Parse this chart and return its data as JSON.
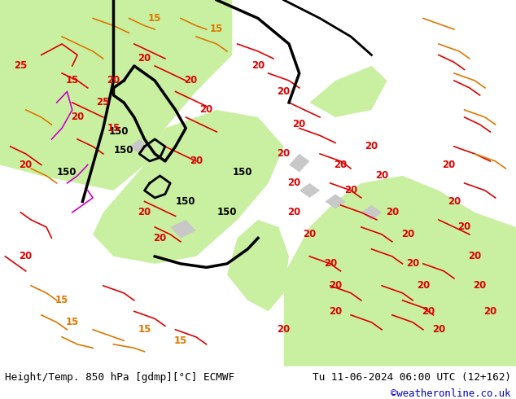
{
  "figsize": [
    6.34,
    4.9
  ],
  "dpi": 100,
  "bg_color": "#d0d0d0",
  "map_bg_color": "#e8e8e8",
  "bottom_bar_color": "#ffffff",
  "bottom_bar_height": 0.082,
  "title_left": "Height/Temp. 850 hPa [gdmp][°C] ECMWF",
  "title_right": "Tu 11-06-2024 06:00 UTC (12+162)",
  "credit": "©weatheronline.co.uk",
  "title_fontsize": 9.5,
  "credit_fontsize": 9.0,
  "credit_color": "#0000cc",
  "title_color": "#000000",
  "land_green_color": "#c8f0a0",
  "land_gray_color": "#c8c8c8",
  "sea_color": "#d8e8f8",
  "contour_black_color": "#000000",
  "contour_red_color": "#dd0000",
  "contour_orange_color": "#dd7700",
  "contour_magenta_color": "#cc00cc",
  "label_150": "150",
  "label_20": "20",
  "label_25": "25",
  "label_15": "15"
}
